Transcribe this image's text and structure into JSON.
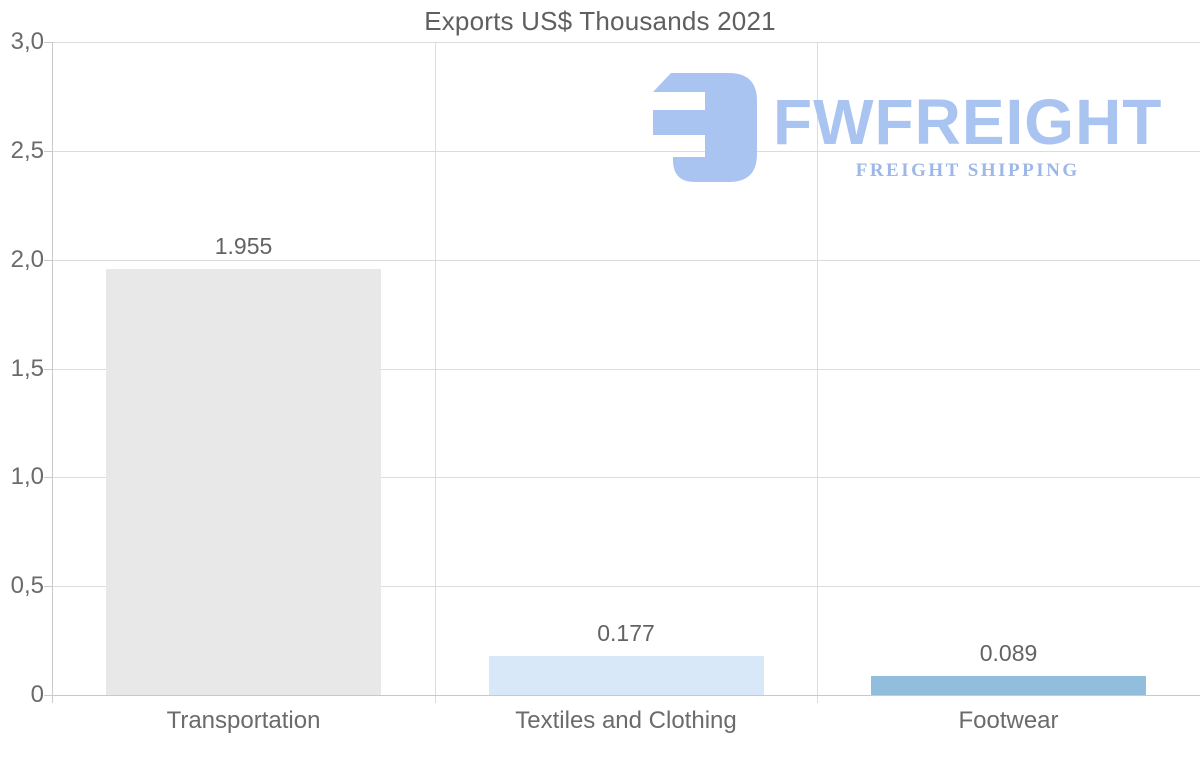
{
  "title": "Exports US$ Thousands 2021",
  "logo": {
    "name": "FWFREIGHT",
    "tagline": "FREIGHT SHIPPING",
    "mark_color": "#a9c4f0",
    "name_color": "#a9c4f0",
    "tagline_color": "#9cb7e8"
  },
  "chart_data": {
    "type": "bar",
    "title": "Exports US$ Thousands 2021",
    "categories": [
      "Transportation",
      "Textiles and Clothing",
      "Footwear"
    ],
    "values": [
      1.955,
      0.177,
      0.089
    ],
    "value_labels": [
      "1.955",
      "0.177",
      "0.089"
    ],
    "bar_colors": [
      "#e8e8e8",
      "#d9e8f9",
      "#92bede"
    ],
    "xlabel": "",
    "ylabel": "",
    "ylim": [
      0,
      3
    ],
    "ytick_values": [
      3.0,
      2.5,
      2.0,
      1.5,
      1.0,
      0.5,
      0
    ],
    "ytick_labels": [
      "3,0",
      "2,5",
      "2,0",
      "1,5",
      "1,0",
      "0,5",
      "0"
    ],
    "decimal_separator_axis": ",",
    "grid": true,
    "legend": false
  }
}
